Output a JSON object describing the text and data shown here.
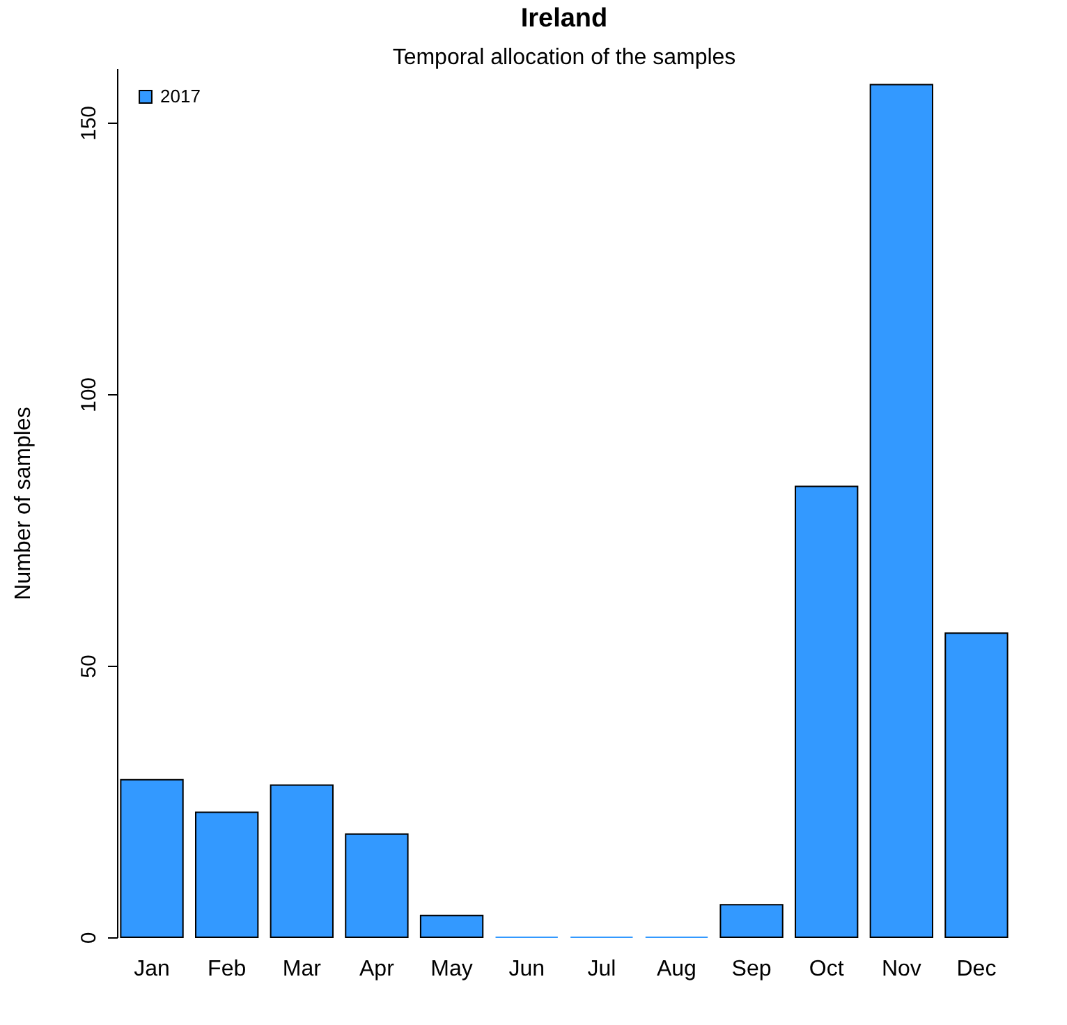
{
  "chart_data": {
    "type": "bar",
    "title": "Ireland",
    "subtitle": "Temporal allocation of the samples",
    "ylabel": "Number of samples",
    "categories": [
      "Jan",
      "Feb",
      "Mar",
      "Apr",
      "May",
      "Jun",
      "Jul",
      "Aug",
      "Sep",
      "Oct",
      "Nov",
      "Dec"
    ],
    "series": [
      {
        "name": "2017",
        "color": "#3399ff",
        "values": [
          29,
          23,
          28,
          19,
          4,
          0,
          0,
          0,
          6,
          83,
          157,
          56
        ]
      }
    ],
    "ylim": [
      0,
      160
    ],
    "yticks": [
      0,
      50,
      100,
      150
    ],
    "grid": false,
    "legend": "top left"
  }
}
